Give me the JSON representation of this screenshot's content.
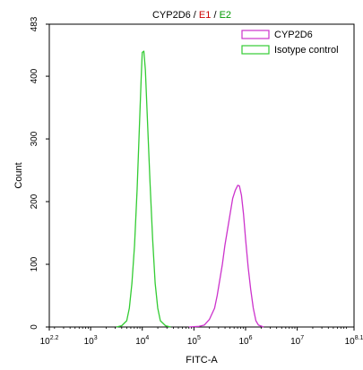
{
  "chart_data": {
    "type": "line",
    "title": {
      "parts": [
        {
          "text": "CYP2D6",
          "color": "#000000"
        },
        {
          "text": " / ",
          "color": "#000000"
        },
        {
          "text": "E1",
          "color": "#cc0000"
        },
        {
          "text": " / ",
          "color": "#000000"
        },
        {
          "text": "E2",
          "color": "#009900"
        }
      ]
    },
    "xlabel": "FITC-A",
    "ylabel": "Count",
    "xscale": "log",
    "xlim": [
      2.2,
      8.1
    ],
    "ylim": [
      0,
      483
    ],
    "x_ticks": [
      {
        "base": "10",
        "exp": "2.2",
        "value": 2.2
      },
      {
        "base": "10",
        "exp": "3",
        "value": 3
      },
      {
        "base": "10",
        "exp": "4",
        "value": 4
      },
      {
        "base": "10",
        "exp": "5",
        "value": 5
      },
      {
        "base": "10",
        "exp": "6",
        "value": 6
      },
      {
        "base": "10",
        "exp": "7",
        "value": 7
      },
      {
        "base": "10",
        "exp": "8.1",
        "value": 8.1
      }
    ],
    "y_ticks": [
      {
        "label": "0",
        "value": 0
      },
      {
        "label": "100",
        "value": 100
      },
      {
        "label": "200",
        "value": 200
      },
      {
        "label": "300",
        "value": 300
      },
      {
        "label": "400",
        "value": 400
      },
      {
        "label": "483",
        "value": 483
      }
    ],
    "grid": false,
    "legend_position": "top-right",
    "series": [
      {
        "name": "CYP2D6",
        "color": "#cc33cc",
        "points": [
          [
            4.9,
            0
          ],
          [
            5.1,
            1
          ],
          [
            5.2,
            3
          ],
          [
            5.3,
            12
          ],
          [
            5.4,
            30
          ],
          [
            5.45,
            50
          ],
          [
            5.5,
            75
          ],
          [
            5.55,
            100
          ],
          [
            5.6,
            130
          ],
          [
            5.65,
            155
          ],
          [
            5.7,
            180
          ],
          [
            5.75,
            205
          ],
          [
            5.8,
            218
          ],
          [
            5.85,
            226
          ],
          [
            5.88,
            225
          ],
          [
            5.92,
            210
          ],
          [
            5.96,
            180
          ],
          [
            6.0,
            140
          ],
          [
            6.05,
            95
          ],
          [
            6.1,
            60
          ],
          [
            6.15,
            30
          ],
          [
            6.2,
            10
          ],
          [
            6.25,
            3
          ],
          [
            6.35,
            0
          ]
        ]
      },
      {
        "name": "Isotype control",
        "color": "#33cc33",
        "points": [
          [
            3.5,
            0
          ],
          [
            3.6,
            2
          ],
          [
            3.7,
            10
          ],
          [
            3.75,
            30
          ],
          [
            3.8,
            70
          ],
          [
            3.85,
            130
          ],
          [
            3.9,
            220
          ],
          [
            3.95,
            330
          ],
          [
            3.98,
            400
          ],
          [
            4.0,
            438
          ],
          [
            4.03,
            440
          ],
          [
            4.06,
            410
          ],
          [
            4.1,
            330
          ],
          [
            4.15,
            230
          ],
          [
            4.2,
            140
          ],
          [
            4.25,
            70
          ],
          [
            4.3,
            30
          ],
          [
            4.35,
            10
          ],
          [
            4.45,
            2
          ],
          [
            4.55,
            0
          ]
        ]
      }
    ]
  }
}
